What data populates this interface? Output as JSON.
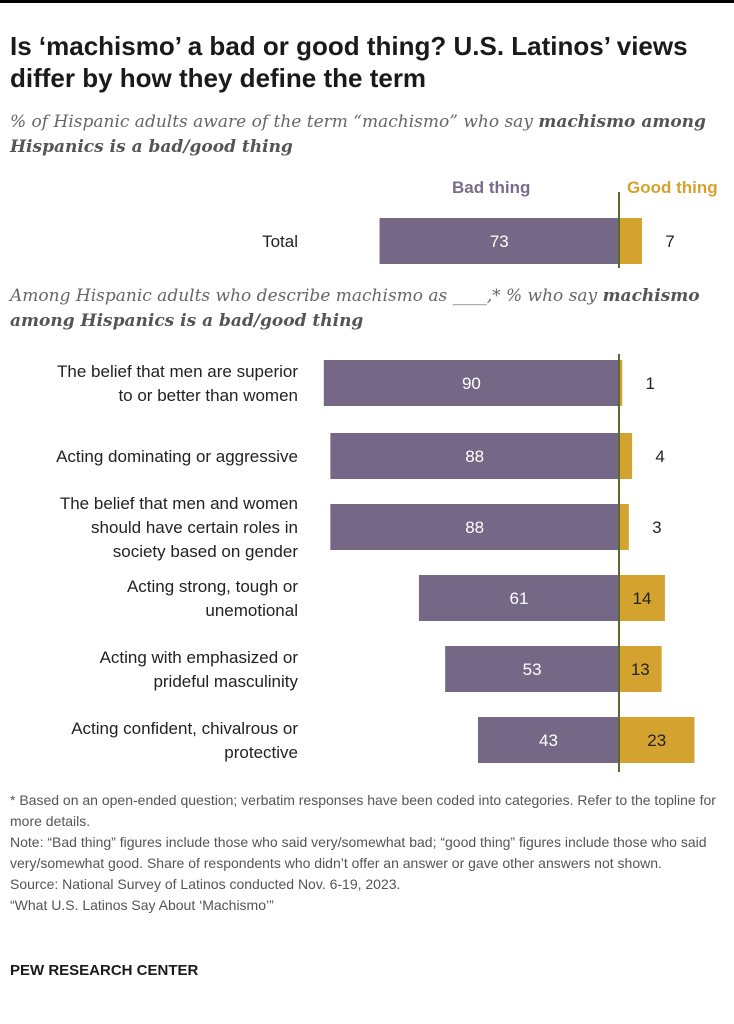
{
  "title": "Is ‘machismo’ a bad or good thing? U.S. Latinos’ views differ by how they define the term",
  "subtitle1_a": "% of Hispanic adults aware of the term “machismo” who say ",
  "subtitle1_b": "machismo among Hispanics is a bad/good thing",
  "subtitle2_a": "Among Hispanic adults who describe machismo as ____,* % who say ",
  "subtitle2_b": "machismo among Hispanics is a bad/good thing",
  "colors": {
    "bad": "#756786",
    "good": "#d4a22f",
    "axis": "#5a6a2e"
  },
  "chart_data": {
    "type": "bar",
    "orientation": "horizontal-diverging",
    "series": [
      {
        "name": "Bad thing"
      },
      {
        "name": "Good thing"
      }
    ],
    "rows": [
      {
        "label": [
          "Total"
        ],
        "bad": 73,
        "good": 7,
        "group": "total"
      },
      {
        "label": [
          "The belief that men are superior",
          "to or better than women"
        ],
        "bad": 90,
        "good": 1,
        "group": "definitions"
      },
      {
        "label": [
          "Acting dominating or aggressive"
        ],
        "bad": 88,
        "good": 4,
        "group": "definitions"
      },
      {
        "label": [
          "The belief that men and women",
          "should have certain roles in",
          "society based on gender"
        ],
        "bad": 88,
        "good": 3,
        "group": "definitions"
      },
      {
        "label": [
          "Acting strong, tough or",
          "unemotional"
        ],
        "bad": 61,
        "good": 14,
        "group": "definitions"
      },
      {
        "label": [
          "Acting with emphasized or",
          "prideful masculinity"
        ],
        "bad": 53,
        "good": 13,
        "group": "definitions"
      },
      {
        "label": [
          "Acting confident, chivalrous or",
          "protective"
        ],
        "bad": 43,
        "good": 23,
        "group": "definitions"
      }
    ]
  },
  "footnotes": [
    "* Based on an open-ended question; verbatim responses have been coded into categories. Refer to the topline for more details.",
    "Note: “Bad thing” figures include those who said very/somewhat bad; “good thing” figures include those who said very/somewhat good. Share of respondents who didn’t offer an answer or gave other answers not shown.",
    "Source: National Survey of Latinos conducted Nov. 6-19, 2023.",
    "“What U.S. Latinos Say About ‘Machismo’”"
  ],
  "brand": "PEW RESEARCH CENTER"
}
